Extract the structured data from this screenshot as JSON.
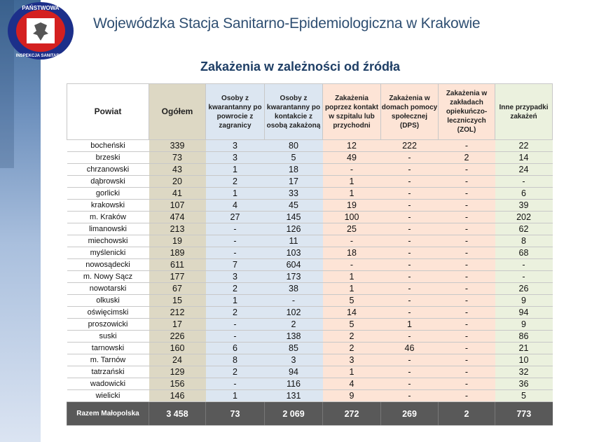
{
  "header": {
    "organization": "Wojewódzka Stacja Sanitarno-Epidemiologiczna w Krakowie",
    "logo_text": [
      "PAŃSTWOWA",
      "INSPEKCJA SANITARNA"
    ],
    "title": "Zakażenia w zależności od źródła"
  },
  "table": {
    "columns": [
      "Powiat",
      "Ogółem",
      "Osoby z kwarantanny po powrocie z zagranicy",
      "Osoby z kwarantanny po kontakcie z osobą zakażoną",
      "Zakażenia poprzez kontakt w szpitalu lub przychodni",
      "Zakażenia w domach pomocy społecznej (DPS)",
      "Zakażenia w zakładach opiekuńczo-leczniczych (ZOL)",
      "Inne przypadki zakażeń"
    ],
    "rows": [
      [
        "bocheński",
        "339",
        "3",
        "80",
        "12",
        "222",
        "-",
        "22"
      ],
      [
        "brzeski",
        "73",
        "3",
        "5",
        "49",
        "-",
        "2",
        "14"
      ],
      [
        "chrzanowski",
        "43",
        "1",
        "18",
        "-",
        "-",
        "-",
        "24"
      ],
      [
        "dąbrowski",
        "20",
        "2",
        "17",
        "1",
        "-",
        "-",
        "-"
      ],
      [
        "gorlicki",
        "41",
        "1",
        "33",
        "1",
        "-",
        "-",
        "6"
      ],
      [
        "krakowski",
        "107",
        "4",
        "45",
        "19",
        "-",
        "-",
        "39"
      ],
      [
        "m. Kraków",
        "474",
        "27",
        "145",
        "100",
        "-",
        "-",
        "202"
      ],
      [
        "limanowski",
        "213",
        "-",
        "126",
        "25",
        "-",
        "-",
        "62"
      ],
      [
        "miechowski",
        "19",
        "-",
        "11",
        "-",
        "-",
        "-",
        "8"
      ],
      [
        "myślenicki",
        "189",
        "-",
        "103",
        "18",
        "-",
        "-",
        "68"
      ],
      [
        "nowosądecki",
        "611",
        "7",
        "604",
        "-",
        "-",
        "-",
        "-"
      ],
      [
        "m. Nowy Sącz",
        "177",
        "3",
        "173",
        "1",
        "-",
        "-",
        "-"
      ],
      [
        "nowotarski",
        "67",
        "2",
        "38",
        "1",
        "-",
        "-",
        "26"
      ],
      [
        "olkuski",
        "15",
        "1",
        "-",
        "5",
        "-",
        "-",
        "9"
      ],
      [
        "oświęcimski",
        "212",
        "2",
        "102",
        "14",
        "-",
        "-",
        "94"
      ],
      [
        "proszowicki",
        "17",
        "-",
        "2",
        "5",
        "1",
        "-",
        "9"
      ],
      [
        "suski",
        "226",
        "-",
        "138",
        "2",
        "-",
        "-",
        "86"
      ],
      [
        "tarnowski",
        "160",
        "6",
        "85",
        "2",
        "46",
        "-",
        "21"
      ],
      [
        "m. Tarnów",
        "24",
        "8",
        "3",
        "3",
        "-",
        "-",
        "10"
      ],
      [
        "tatrzański",
        "129",
        "2",
        "94",
        "1",
        "-",
        "-",
        "32"
      ],
      [
        "wadowicki",
        "156",
        "-",
        "116",
        "4",
        "-",
        "-",
        "36"
      ],
      [
        "wielicki",
        "146",
        "1",
        "131",
        "9",
        "-",
        "-",
        "5"
      ]
    ],
    "total": [
      "Razem Małopolska",
      "3 458",
      "73",
      "2 069",
      "272",
      "269",
      "2",
      "773"
    ]
  },
  "colors": {
    "ogolem": "#ddd8c4",
    "kwarantanna": "#dce6f1",
    "placowki": "#fde4d6",
    "inne": "#ebf1de",
    "total": "#595959"
  }
}
